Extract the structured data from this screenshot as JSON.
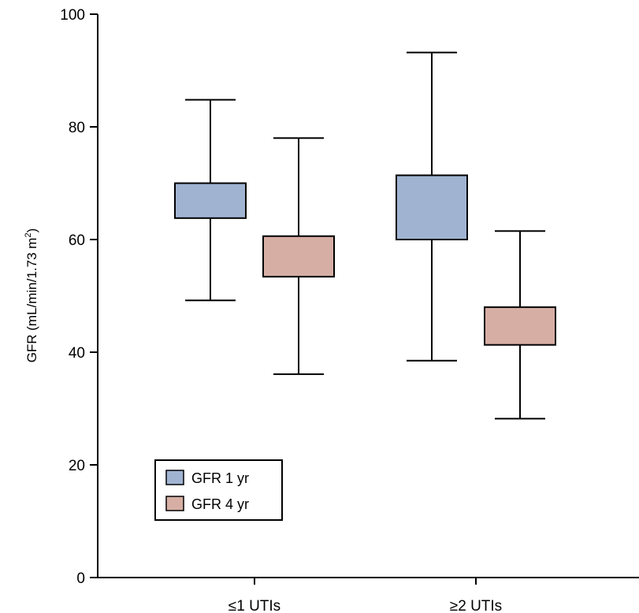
{
  "chart_data": {
    "type": "box",
    "title": "",
    "xlabel": "",
    "ylabel": "GFR (mL/min/1.73 m",
    "ylabel_sup": "2",
    "ylabel_tail": ")",
    "ylim": [
      0,
      100
    ],
    "yticks": [
      "0",
      "20",
      "40",
      "60",
      "80",
      "100"
    ],
    "categories": [
      "≤1 UTIs",
      "≥2 UTIs"
    ],
    "series": [
      {
        "name": "GFR 1 yr",
        "color": "#a0b4d2",
        "boxes": [
          {
            "min": 49.2,
            "q1": 63.8,
            "q3": 70.0,
            "max": 84.8
          },
          {
            "min": 38.5,
            "q1": 60.0,
            "q3": 71.4,
            "max": 93.2
          }
        ]
      },
      {
        "name": "GFR 4 yr",
        "color": "#d6aea4",
        "boxes": [
          {
            "min": 36.1,
            "q1": 53.4,
            "q3": 60.6,
            "max": 78.0
          },
          {
            "min": 28.2,
            "q1": 41.3,
            "q3": 48.0,
            "max": 61.5
          }
        ]
      }
    ],
    "legend_position": "bottom-left"
  }
}
